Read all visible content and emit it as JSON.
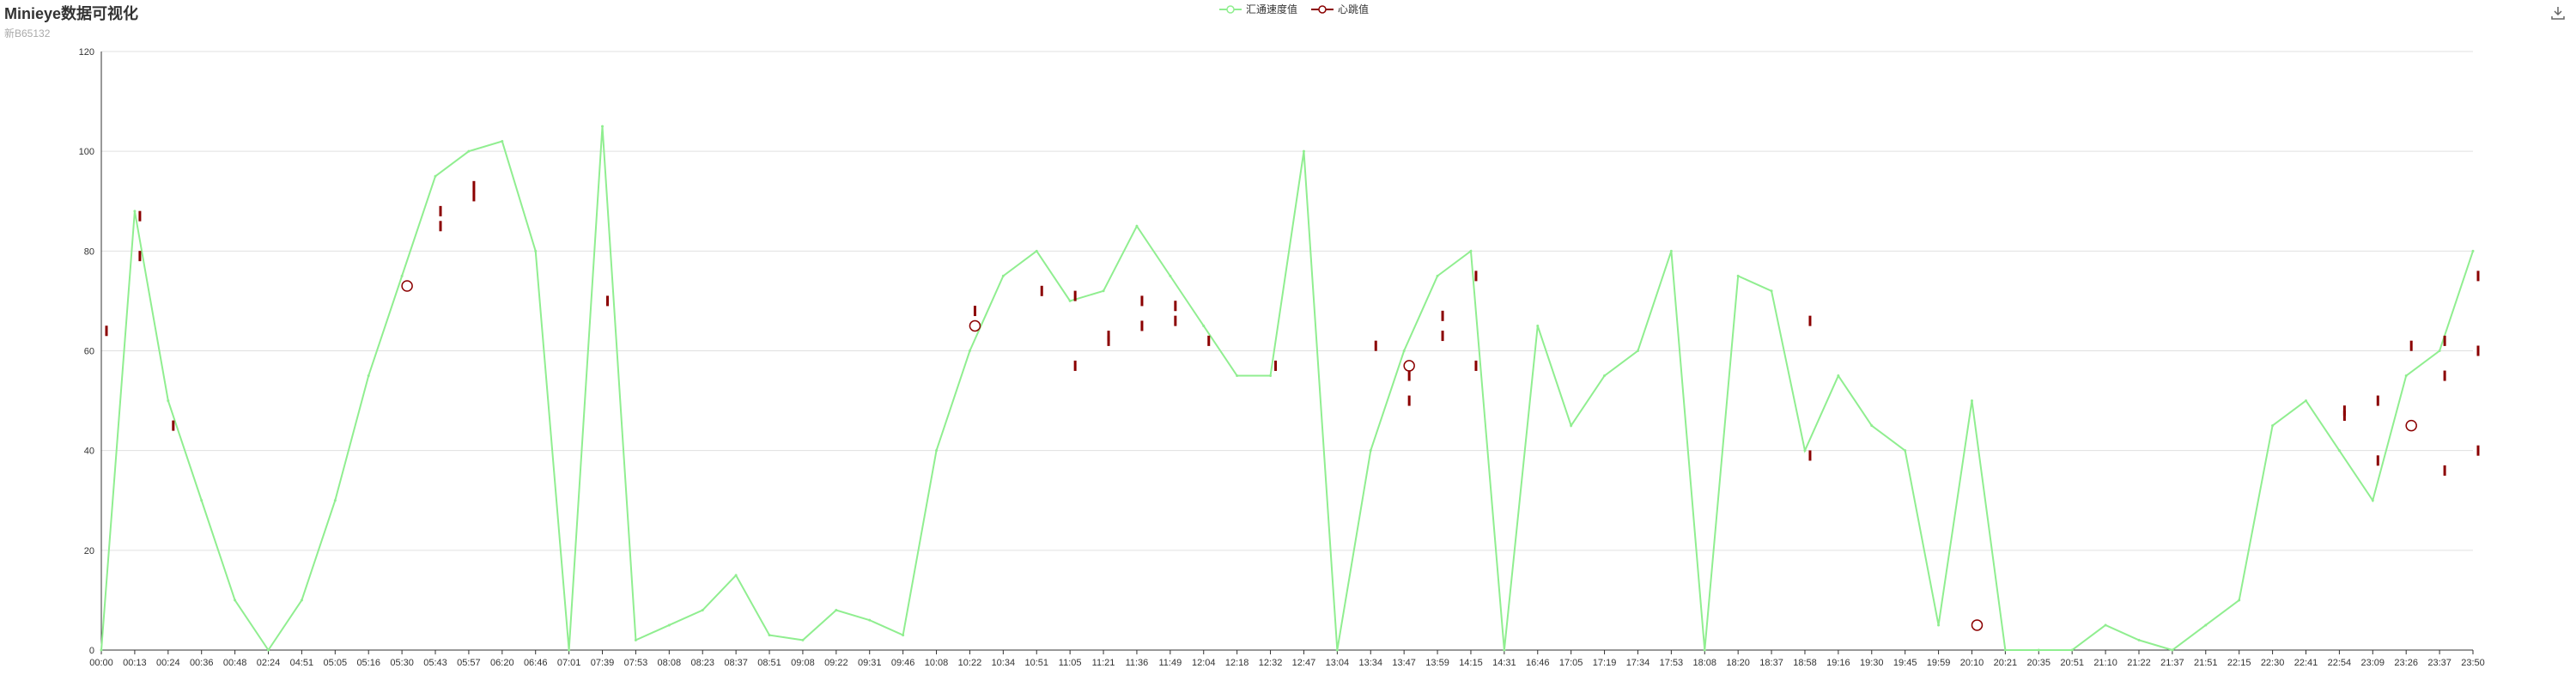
{
  "header": {
    "title": "Minieye数据可视化",
    "subtitle": "新B65132"
  },
  "toolbar": {
    "download_icon": "download-icon"
  },
  "colors": {
    "speed": "#90ee90",
    "heartbeat": "#8b0000",
    "grid": "#e0e0e0",
    "axis": "#333333"
  },
  "legend": {
    "speed_label": "汇通速度值",
    "heartbeat_label": "心跳值"
  },
  "chart_data": {
    "type": "line",
    "title": "Minieye数据可视化",
    "subtitle": "新B65132",
    "xlabel": "",
    "ylabel": "",
    "ylim": [
      0,
      120
    ],
    "yticks": [
      0,
      20,
      40,
      60,
      80,
      100,
      120
    ],
    "grid": true,
    "legend_position": "top-center",
    "categories": [
      "00:00",
      "00:13",
      "00:24",
      "00:36",
      "00:48",
      "02:24",
      "04:51",
      "05:05",
      "05:16",
      "05:30",
      "05:43",
      "05:57",
      "06:20",
      "06:46",
      "07:01",
      "07:39",
      "07:53",
      "08:08",
      "08:23",
      "08:37",
      "08:51",
      "09:08",
      "09:22",
      "09:31",
      "09:46",
      "10:08",
      "10:22",
      "10:34",
      "10:51",
      "11:05",
      "11:21",
      "11:36",
      "11:49",
      "12:04",
      "12:18",
      "12:32",
      "12:47",
      "13:04",
      "13:34",
      "13:47",
      "13:59",
      "14:15",
      "14:31",
      "16:46",
      "17:05",
      "17:19",
      "17:34",
      "17:53",
      "18:08",
      "18:20",
      "18:37",
      "18:58",
      "19:16",
      "19:30",
      "19:45",
      "19:59",
      "20:10",
      "20:21",
      "20:35",
      "20:51",
      "21:10",
      "21:22",
      "21:37",
      "21:51",
      "22:15",
      "22:30",
      "22:41",
      "22:54",
      "23:09",
      "23:26",
      "23:37",
      "23:50"
    ],
    "series": [
      {
        "name": "汇通速度值",
        "values": [
          0,
          88,
          50,
          30,
          10,
          0,
          10,
          30,
          55,
          75,
          95,
          100,
          102,
          80,
          0,
          105,
          2,
          5,
          8,
          15,
          3,
          2,
          8,
          6,
          3,
          40,
          60,
          75,
          80,
          70,
          72,
          85,
          75,
          65,
          55,
          55,
          100,
          0,
          40,
          60,
          75,
          80,
          0,
          65,
          45,
          55,
          60,
          80,
          0,
          75,
          72,
          40,
          55,
          45,
          40,
          5,
          50,
          0,
          0,
          0,
          5,
          2,
          0,
          5,
          10,
          45,
          50,
          40,
          30,
          55,
          60,
          80
        ]
      },
      {
        "name": "心跳值",
        "points": [
          [
            0,
            64
          ],
          [
            1,
            87
          ],
          [
            1,
            79
          ],
          [
            2,
            45
          ],
          [
            9,
            73
          ],
          [
            10,
            85
          ],
          [
            10,
            88
          ],
          [
            11,
            93
          ],
          [
            11,
            91
          ],
          [
            15,
            70
          ],
          [
            26,
            65
          ],
          [
            26,
            68
          ],
          [
            28,
            72
          ],
          [
            29,
            71
          ],
          [
            29,
            57
          ],
          [
            30,
            63
          ],
          [
            30,
            62
          ],
          [
            31,
            70
          ],
          [
            31,
            65
          ],
          [
            32,
            69
          ],
          [
            32,
            66
          ],
          [
            33,
            62
          ],
          [
            35,
            57
          ],
          [
            38,
            61
          ],
          [
            39,
            57
          ],
          [
            39,
            55
          ],
          [
            39,
            50
          ],
          [
            40,
            67
          ],
          [
            40,
            63
          ],
          [
            41,
            75
          ],
          [
            41,
            57
          ],
          [
            51,
            66
          ],
          [
            51,
            39
          ],
          [
            56,
            5
          ],
          [
            67,
            48
          ],
          [
            67,
            47
          ],
          [
            68,
            50
          ],
          [
            68,
            38
          ],
          [
            69,
            61
          ],
          [
            69,
            45
          ],
          [
            70,
            62
          ],
          [
            70,
            55
          ],
          [
            70,
            36
          ],
          [
            71,
            75
          ],
          [
            71,
            60
          ],
          [
            71,
            40
          ]
        ]
      }
    ]
  }
}
